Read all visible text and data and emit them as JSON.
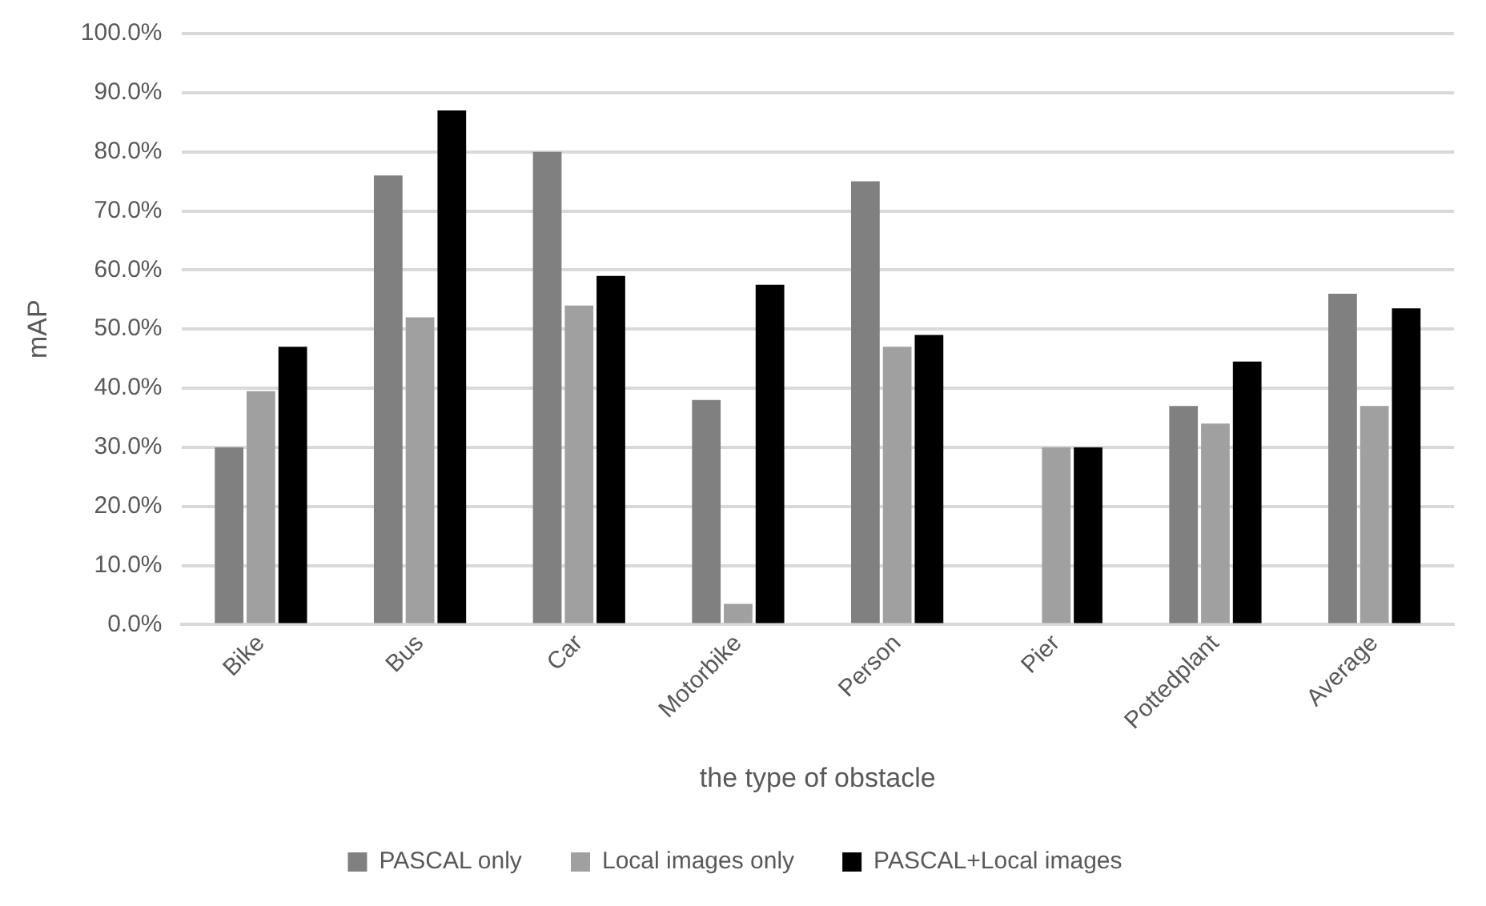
{
  "chart_data": {
    "type": "bar",
    "xlabel": "the type of obstacle",
    "ylabel": "mAP",
    "categories": [
      "Bike",
      "Bus",
      "Car",
      "Motorbike",
      "Person",
      "Pier",
      "Pottedplant",
      "Average"
    ],
    "series": [
      {
        "name": "PASCAL only",
        "color": "#808080",
        "values": [
          30,
          76,
          80,
          38,
          75,
          0,
          37,
          56
        ]
      },
      {
        "name": "Local images only",
        "color": "#a0a0a0",
        "values": [
          39.5,
          52,
          54,
          3.5,
          47,
          30,
          34,
          37
        ]
      },
      {
        "name": "PASCAL+Local images",
        "color": "#000000",
        "values": [
          47,
          87,
          59,
          57.5,
          49,
          30,
          44.5,
          53.5
        ]
      }
    ],
    "ylim": [
      0,
      100
    ],
    "yticks": [
      {
        "value": 0,
        "label": "0.0%"
      },
      {
        "value": 10,
        "label": "10.0%"
      },
      {
        "value": 20,
        "label": "20.0%"
      },
      {
        "value": 30,
        "label": "30.0%"
      },
      {
        "value": 40,
        "label": "40.0%"
      },
      {
        "value": 50,
        "label": "50.0%"
      },
      {
        "value": 60,
        "label": "60.0%"
      },
      {
        "value": 70,
        "label": "70.0%"
      },
      {
        "value": 80,
        "label": "80.0%"
      },
      {
        "value": 90,
        "label": "90.0%"
      },
      {
        "value": 100,
        "label": "100.0%"
      }
    ],
    "grid": "y",
    "legend": "bottom"
  }
}
